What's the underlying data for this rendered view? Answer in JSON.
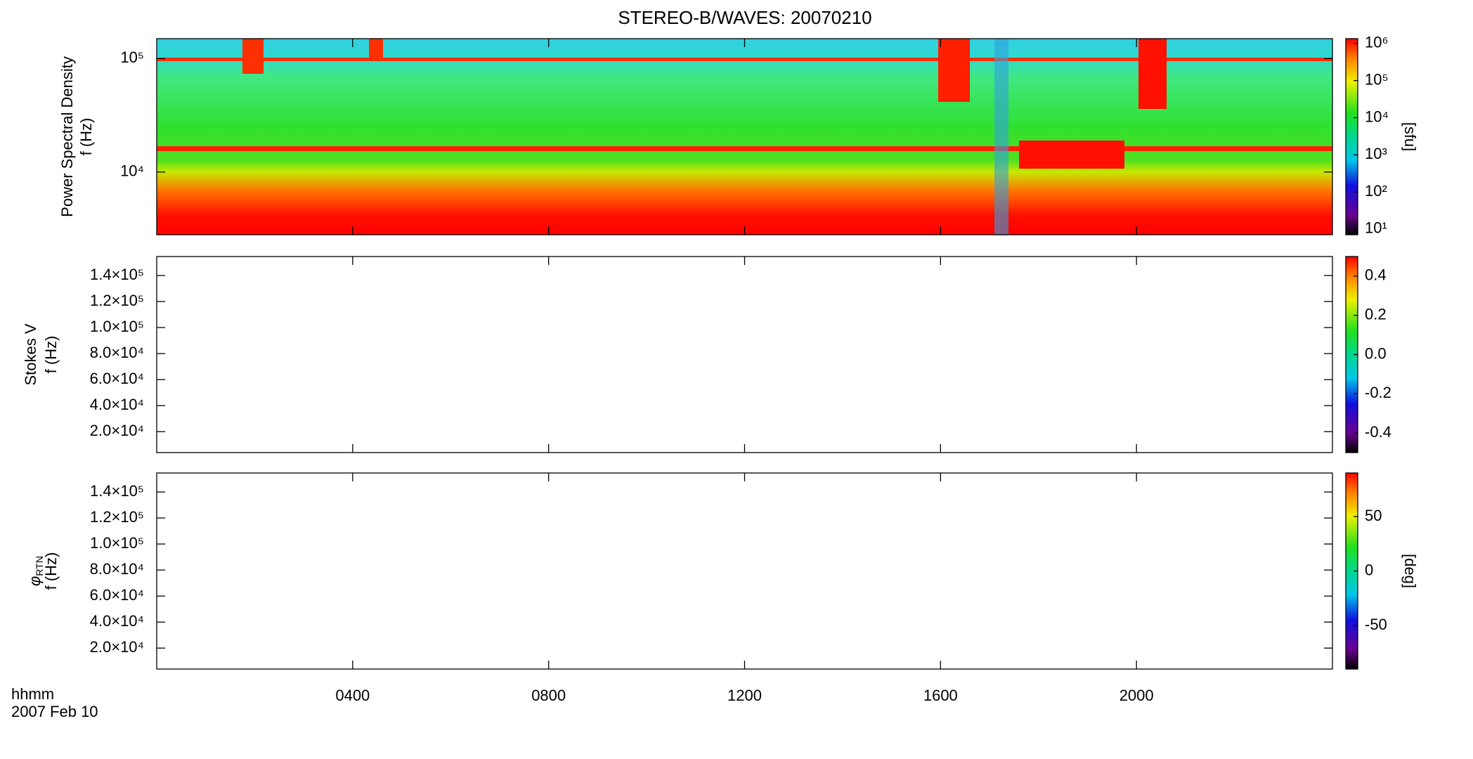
{
  "chart_data": [
    {
      "type": "heatmap",
      "title": "STEREO-B/WAVES: 20070210",
      "ylabel": [
        "Power Spectral Density",
        "f (Hz)"
      ],
      "ylog": true,
      "ylim": [
        2800,
        150000
      ],
      "yticks": [
        {
          "value": 10000,
          "label": "10⁴"
        },
        {
          "value": 100000,
          "label": "10⁵"
        }
      ],
      "colorbar": {
        "label": "[sfu]",
        "log": true,
        "lim": [
          7,
          1350000
        ],
        "ticks": [
          {
            "value": 10,
            "label": "10¹"
          },
          {
            "value": 100,
            "label": "10²"
          },
          {
            "value": 1000,
            "label": "10³"
          },
          {
            "value": 10000,
            "label": "10⁴"
          },
          {
            "value": 100000,
            "label": "10⁵"
          },
          {
            "value": 1000000,
            "label": "10⁶"
          }
        ]
      }
    },
    {
      "type": "heatmap",
      "ylabel": [
        "Stokes V",
        "f (Hz)"
      ],
      "ylog": false,
      "ylim": [
        3900,
        154600
      ],
      "yticks": [
        {
          "value": 20000,
          "label": "2.0×10⁴"
        },
        {
          "value": 40000,
          "label": "4.0×10⁴"
        },
        {
          "value": 60000,
          "label": "6.0×10⁴"
        },
        {
          "value": 80000,
          "label": "8.0×10⁴"
        },
        {
          "value": 100000,
          "label": "1.0×10⁵"
        },
        {
          "value": 120000,
          "label": "1.2×10⁵"
        },
        {
          "value": 140000,
          "label": "1.4×10⁵"
        }
      ],
      "colorbar": {
        "log": false,
        "lim": [
          -0.5,
          0.5
        ],
        "ticks": [
          -0.4,
          -0.2,
          {
            "value": 0,
            "label": "0.0"
          },
          0.2,
          0.4
        ]
      }
    },
    {
      "type": "heatmap",
      "ylabel": [
        [
          "φ",
          "RTN"
        ],
        "f (Hz)"
      ],
      "ylog": false,
      "ylim": [
        3900,
        154600
      ],
      "yticks": [
        {
          "value": 20000,
          "label": "2.0×10⁴"
        },
        {
          "value": 40000,
          "label": "4.0×10⁴"
        },
        {
          "value": 60000,
          "label": "6.0×10⁴"
        },
        {
          "value": 80000,
          "label": "8.0×10⁴"
        },
        {
          "value": 100000,
          "label": "1.0×10⁵"
        },
        {
          "value": 120000,
          "label": "1.2×10⁵"
        },
        {
          "value": 140000,
          "label": "1.4×10⁵"
        }
      ],
      "colorbar": {
        "label": "[deg]",
        "log": false,
        "lim": [
          -90,
          90
        ],
        "ticks": [
          -50,
          0,
          50
        ]
      },
      "xlim": [
        0,
        24
      ],
      "xticks": [
        {
          "value": 4,
          "label": "0400"
        },
        {
          "value": 8,
          "label": "0800"
        },
        {
          "value": 12,
          "label": "1200"
        },
        {
          "value": 16,
          "label": "1600"
        },
        {
          "value": 20,
          "label": "2000"
        }
      ],
      "xlabel": "hhmm",
      "date": "2007 Feb 10"
    }
  ]
}
